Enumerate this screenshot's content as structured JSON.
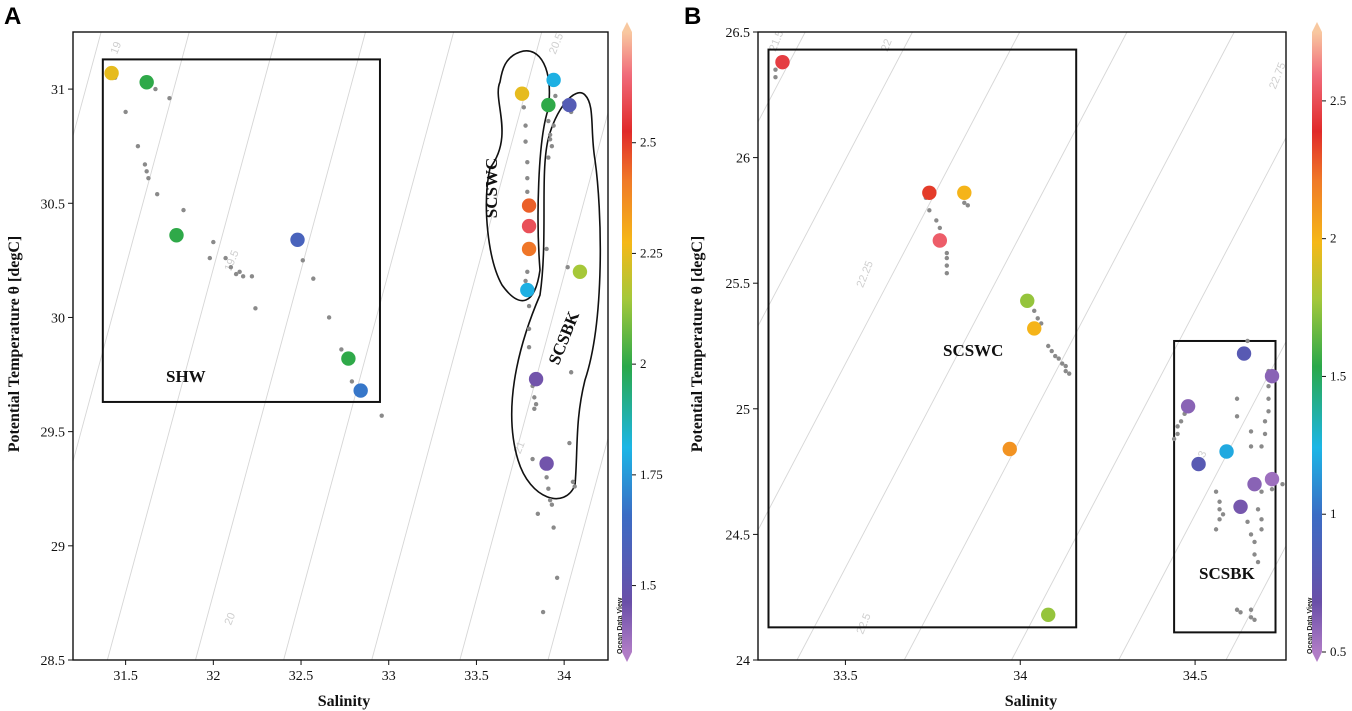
{
  "colors": {
    "frame": "#111111",
    "isopycnal": "#d6d6d6",
    "small_dot": "#8a8a8a",
    "colorbar_stops": [
      "#b07cc6",
      "#6a4fa8",
      "#3b6cc4",
      "#1cb6e6",
      "#2aa84a",
      "#a5c83a",
      "#f5b818",
      "#f07a28",
      "#e02a2a",
      "#f06a7a",
      "#f8c8a0"
    ]
  },
  "chart_data": [
    {
      "panel": "A",
      "type": "scatter",
      "xlabel": "Salinity",
      "ylabel": "Potential Temperature θ [degC]",
      "xlim": [
        31.2,
        34.25
      ],
      "ylim": [
        28.5,
        31.25
      ],
      "xticks": [
        "31.5",
        "32",
        "32.5",
        "33",
        "33.5",
        "34"
      ],
      "yticks": [
        "28.5",
        "29",
        "29.5",
        "30",
        "30.5",
        "31"
      ],
      "colorbar": {
        "range": [
          1.35,
          2.75
        ],
        "ticks": [
          "1.5",
          "1.75",
          "2",
          "2.25",
          "2.5"
        ],
        "watermark": "Ocean Data View"
      },
      "isopycnals": [
        {
          "label": "19",
          "sal": 31.45,
          "theta": 31.15
        },
        {
          "label": "19.5",
          "sal": 32.1,
          "theta": 30.2
        },
        {
          "label": "20",
          "sal": 32.1,
          "theta": 28.65
        },
        {
          "label": "20.5",
          "sal": 33.95,
          "theta": 31.15
        },
        {
          "label": "21",
          "sal": 33.75,
          "theta": 29.4
        }
      ],
      "regions": [
        {
          "label": "SHW",
          "shape": "rect",
          "sal_range": [
            31.37,
            32.95
          ],
          "theta_range": [
            29.63,
            31.13
          ]
        },
        {
          "label": "SCSWC",
          "shape": "outline"
        },
        {
          "label": "SCSBK",
          "shape": "outline"
        }
      ],
      "small_points": [
        [
          31.44,
          31.05
        ],
        [
          31.5,
          30.9
        ],
        [
          31.57,
          30.75
        ],
        [
          31.61,
          30.67
        ],
        [
          31.62,
          30.64
        ],
        [
          31.63,
          30.61
        ],
        [
          31.68,
          30.54
        ],
        [
          31.75,
          30.96
        ],
        [
          31.67,
          31.0
        ],
        [
          31.83,
          30.47
        ],
        [
          31.98,
          30.26
        ],
        [
          32.0,
          30.33
        ],
        [
          32.07,
          30.26
        ],
        [
          32.1,
          30.22
        ],
        [
          32.13,
          30.19
        ],
        [
          32.15,
          30.2
        ],
        [
          32.17,
          30.18
        ],
        [
          32.22,
          30.18
        ],
        [
          32.24,
          30.04
        ],
        [
          32.51,
          30.25
        ],
        [
          32.57,
          30.17
        ],
        [
          32.66,
          30.0
        ],
        [
          32.73,
          29.86
        ],
        [
          32.76,
          29.81
        ],
        [
          32.79,
          29.72
        ],
        [
          32.96,
          29.57
        ],
        [
          33.77,
          30.92
        ],
        [
          33.78,
          30.84
        ],
        [
          33.78,
          30.77
        ],
        [
          33.79,
          30.68
        ],
        [
          33.79,
          30.61
        ],
        [
          33.79,
          30.55
        ],
        [
          33.79,
          30.2
        ],
        [
          33.78,
          30.16
        ],
        [
          33.79,
          30.1
        ],
        [
          33.8,
          30.05
        ],
        [
          33.8,
          29.95
        ],
        [
          33.8,
          29.87
        ],
        [
          33.82,
          29.7
        ],
        [
          33.83,
          29.65
        ],
        [
          33.84,
          29.62
        ],
        [
          33.83,
          29.6
        ],
        [
          33.82,
          29.38
        ],
        [
          33.9,
          29.3
        ],
        [
          33.91,
          29.25
        ],
        [
          33.92,
          29.2
        ],
        [
          33.93,
          29.18
        ],
        [
          33.94,
          29.08
        ],
        [
          33.96,
          28.86
        ],
        [
          33.88,
          28.71
        ],
        [
          33.85,
          29.14
        ],
        [
          33.9,
          30.92
        ],
        [
          33.91,
          30.86
        ],
        [
          33.92,
          30.8
        ],
        [
          33.93,
          30.75
        ],
        [
          33.91,
          30.7
        ],
        [
          33.94,
          30.84
        ],
        [
          33.95,
          30.97
        ],
        [
          33.9,
          30.3
        ],
        [
          34.02,
          30.22
        ],
        [
          34.03,
          29.45
        ],
        [
          34.05,
          29.28
        ],
        [
          34.06,
          29.26
        ],
        [
          34.0,
          30.94
        ],
        [
          34.04,
          30.9
        ],
        [
          34.04,
          29.76
        ],
        [
          33.92,
          30.78
        ]
      ],
      "colored_points": [
        {
          "sal": 31.42,
          "theta": 31.07,
          "value": 2.25
        },
        {
          "sal": 31.62,
          "theta": 31.03,
          "value": 2.0
        },
        {
          "sal": 31.79,
          "theta": 30.36,
          "value": 2.0
        },
        {
          "sal": 32.48,
          "theta": 30.34,
          "value": 1.6
        },
        {
          "sal": 32.77,
          "theta": 29.82,
          "value": 2.0
        },
        {
          "sal": 32.84,
          "theta": 29.68,
          "value": 1.68
        },
        {
          "sal": 33.76,
          "theta": 30.98,
          "value": 2.25
        },
        {
          "sal": 33.8,
          "theta": 30.49,
          "value": 2.45
        },
        {
          "sal": 33.8,
          "theta": 30.4,
          "value": 2.6
        },
        {
          "sal": 33.8,
          "theta": 30.3,
          "value": 2.42
        },
        {
          "sal": 33.79,
          "theta": 30.12,
          "value": 1.8
        },
        {
          "sal": 33.94,
          "theta": 31.04,
          "value": 1.8
        },
        {
          "sal": 33.91,
          "theta": 30.93,
          "value": 2.0
        },
        {
          "sal": 34.03,
          "theta": 30.93,
          "value": 1.55
        },
        {
          "sal": 34.09,
          "theta": 30.2,
          "value": 2.15
        },
        {
          "sal": 33.84,
          "theta": 29.73,
          "value": 1.45
        },
        {
          "sal": 33.9,
          "theta": 29.36,
          "value": 1.45
        }
      ]
    },
    {
      "panel": "B",
      "type": "scatter",
      "xlabel": "Salinity",
      "ylabel": "Potential Temperature θ [degC]",
      "xlim": [
        33.25,
        34.76
      ],
      "ylim": [
        24.0,
        26.5
      ],
      "xticks": [
        "33.5",
        "34",
        "34.5"
      ],
      "yticks": [
        "24",
        "24.5",
        "25",
        "25.5",
        "26",
        "26.5"
      ],
      "colorbar": {
        "range": [
          0.5,
          2.75
        ],
        "ticks": [
          "0.5",
          "1",
          "1.5",
          "2",
          "2.5"
        ],
        "watermark": "Ocean Data View"
      },
      "isopycnals": [
        {
          "label": "21.5",
          "sal": 33.3,
          "theta": 26.42
        },
        {
          "label": "22",
          "sal": 33.62,
          "theta": 26.42
        },
        {
          "label": "22.25",
          "sal": 33.55,
          "theta": 25.48
        },
        {
          "label": "22.5",
          "sal": 33.55,
          "theta": 24.1
        },
        {
          "label": "22.75",
          "sal": 34.73,
          "theta": 26.27
        },
        {
          "label": "23",
          "sal": 34.52,
          "theta": 24.78
        }
      ],
      "regions": [
        {
          "label": "SCSWC",
          "shape": "rect",
          "sal_range": [
            33.28,
            34.16
          ],
          "theta_range": [
            24.13,
            26.43
          ]
        },
        {
          "label": "SCSBK",
          "shape": "rect",
          "sal_range": [
            34.44,
            34.73
          ],
          "theta_range": [
            24.11,
            25.27
          ]
        }
      ],
      "small_points": [
        [
          33.3,
          26.32
        ],
        [
          33.3,
          26.35
        ],
        [
          33.73,
          25.84
        ],
        [
          33.74,
          25.79
        ],
        [
          33.76,
          25.75
        ],
        [
          33.77,
          25.72
        ],
        [
          33.77,
          25.69
        ],
        [
          33.79,
          25.62
        ],
        [
          33.79,
          25.6
        ],
        [
          33.79,
          25.57
        ],
        [
          33.79,
          25.54
        ],
        [
          33.84,
          25.82
        ],
        [
          33.85,
          25.81
        ],
        [
          34.04,
          25.39
        ],
        [
          34.05,
          25.36
        ],
        [
          34.06,
          25.34
        ],
        [
          34.08,
          25.25
        ],
        [
          34.09,
          25.23
        ],
        [
          34.1,
          25.21
        ],
        [
          34.11,
          25.2
        ],
        [
          34.12,
          25.18
        ],
        [
          34.13,
          25.17
        ],
        [
          34.13,
          25.15
        ],
        [
          34.14,
          25.14
        ],
        [
          34.44,
          24.88
        ],
        [
          34.45,
          24.9
        ],
        [
          34.45,
          24.93
        ],
        [
          34.46,
          24.95
        ],
        [
          34.47,
          24.98
        ],
        [
          34.62,
          25.04
        ],
        [
          34.62,
          24.97
        ],
        [
          34.66,
          24.91
        ],
        [
          34.66,
          24.85
        ],
        [
          34.69,
          24.85
        ],
        [
          34.7,
          24.9
        ],
        [
          34.7,
          24.95
        ],
        [
          34.71,
          24.99
        ],
        [
          34.71,
          25.04
        ],
        [
          34.71,
          25.09
        ],
        [
          34.71,
          25.12
        ],
        [
          34.71,
          25.15
        ],
        [
          34.56,
          24.52
        ],
        [
          34.57,
          24.56
        ],
        [
          34.57,
          24.6
        ],
        [
          34.57,
          24.63
        ],
        [
          34.58,
          24.58
        ],
        [
          34.56,
          24.67
        ],
        [
          34.65,
          24.55
        ],
        [
          34.66,
          24.5
        ],
        [
          34.67,
          24.47
        ],
        [
          34.67,
          24.42
        ],
        [
          34.68,
          24.39
        ],
        [
          34.69,
          24.52
        ],
        [
          34.69,
          24.56
        ],
        [
          34.68,
          24.6
        ],
        [
          34.62,
          24.2
        ],
        [
          34.63,
          24.19
        ],
        [
          34.66,
          24.2
        ],
        [
          34.66,
          24.17
        ],
        [
          34.67,
          24.16
        ],
        [
          34.69,
          24.67
        ],
        [
          34.72,
          24.68
        ],
        [
          34.75,
          24.7
        ],
        [
          34.65,
          25.27
        ]
      ],
      "colored_points": [
        {
          "sal": 33.32,
          "theta": 26.38,
          "value": 2.45
        },
        {
          "sal": 33.74,
          "theta": 25.86,
          "value": 2.35
        },
        {
          "sal": 33.84,
          "theta": 25.86,
          "value": 2.0
        },
        {
          "sal": 33.77,
          "theta": 25.67,
          "value": 2.55
        },
        {
          "sal": 34.02,
          "theta": 25.43,
          "value": 1.75
        },
        {
          "sal": 34.04,
          "theta": 25.32,
          "value": 2.0
        },
        {
          "sal": 33.97,
          "theta": 24.84,
          "value": 2.12
        },
        {
          "sal": 34.08,
          "theta": 24.18,
          "value": 1.75
        },
        {
          "sal": 34.64,
          "theta": 25.22,
          "value": 0.8
        },
        {
          "sal": 34.72,
          "theta": 25.13,
          "value": 0.6
        },
        {
          "sal": 34.48,
          "theta": 25.01,
          "value": 0.6
        },
        {
          "sal": 34.59,
          "theta": 24.83,
          "value": 1.2
        },
        {
          "sal": 34.51,
          "theta": 24.78,
          "value": 0.8
        },
        {
          "sal": 34.67,
          "theta": 24.7,
          "value": 0.6
        },
        {
          "sal": 34.72,
          "theta": 24.72,
          "value": 0.55
        },
        {
          "sal": 34.63,
          "theta": 24.61,
          "value": 0.65
        }
      ]
    }
  ]
}
